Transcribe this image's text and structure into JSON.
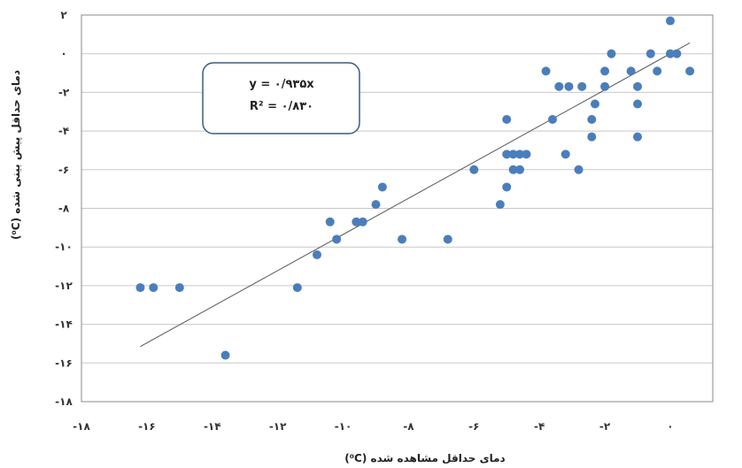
{
  "chart_data": {
    "type": "scatter",
    "xlim": [
      -18,
      1.3
    ],
    "ylim": [
      -18,
      2
    ],
    "x_ticks": [
      -18,
      -16,
      -14,
      -12,
      -10,
      -8,
      -6,
      -4,
      -2,
      0
    ],
    "y_ticks": [
      2,
      0,
      -2,
      -4,
      -6,
      -8,
      -10,
      -12,
      -14,
      -16,
      -18
    ],
    "x_tick_labels": [
      "-۱۸",
      "-۱۶",
      "-۱۴",
      "-۱۲",
      "-۱۰",
      "-۸",
      "-۶",
      "-۴",
      "-۲",
      "۰"
    ],
    "y_tick_labels": [
      "۲",
      "۰",
      "-۲",
      "-۴",
      "-۶",
      "-۸",
      "-۱۰",
      "-۱۲",
      "-۱۴",
      "-۱۶",
      "-۱۸"
    ],
    "xlabel": "دمای حداقل مشاهده شده (⁰C)",
    "ylabel": "دمای حداقل پیش بینی شده (⁰C)",
    "grid": "horizontal",
    "equation": "y = ۰/۹۳۵x",
    "r_squared": "R² = ۰/۸۳۰",
    "trendline": {
      "slope": 0.935,
      "intercept": 0,
      "x_range": [
        -16.2,
        0.6
      ]
    },
    "marker_color": "#4a7ebb",
    "trendline_color": "#555555",
    "points": [
      {
        "x": -16.2,
        "y": -12.1
      },
      {
        "x": -15.8,
        "y": -12.1
      },
      {
        "x": -15.0,
        "y": -12.1
      },
      {
        "x": -13.6,
        "y": -15.6
      },
      {
        "x": -11.4,
        "y": -12.1
      },
      {
        "x": -10.8,
        "y": -10.4
      },
      {
        "x": -10.4,
        "y": -8.7
      },
      {
        "x": -10.2,
        "y": -9.6
      },
      {
        "x": -9.6,
        "y": -8.7
      },
      {
        "x": -9.4,
        "y": -8.7
      },
      {
        "x": -9.0,
        "y": -7.8
      },
      {
        "x": -8.8,
        "y": -6.9
      },
      {
        "x": -8.2,
        "y": -9.6
      },
      {
        "x": -6.8,
        "y": -9.6
      },
      {
        "x": -6.0,
        "y": -6.0
      },
      {
        "x": -5.2,
        "y": -7.8
      },
      {
        "x": -5.0,
        "y": -3.4
      },
      {
        "x": -5.0,
        "y": -5.2
      },
      {
        "x": -5.0,
        "y": -6.9
      },
      {
        "x": -4.8,
        "y": -5.2
      },
      {
        "x": -4.8,
        "y": -6.0
      },
      {
        "x": -4.6,
        "y": -5.2
      },
      {
        "x": -4.6,
        "y": -6.0
      },
      {
        "x": -4.4,
        "y": -5.2
      },
      {
        "x": -3.8,
        "y": -0.9
      },
      {
        "x": -3.6,
        "y": -3.4
      },
      {
        "x": -3.4,
        "y": -1.7
      },
      {
        "x": -3.2,
        "y": -5.2
      },
      {
        "x": -3.1,
        "y": -1.7
      },
      {
        "x": -2.8,
        "y": -6.0
      },
      {
        "x": -2.7,
        "y": -1.7
      },
      {
        "x": -2.4,
        "y": -3.4
      },
      {
        "x": -2.4,
        "y": -4.3
      },
      {
        "x": -2.3,
        "y": -2.6
      },
      {
        "x": -2.0,
        "y": -0.9
      },
      {
        "x": -2.0,
        "y": -1.7
      },
      {
        "x": -1.8,
        "y": 0.0
      },
      {
        "x": -1.2,
        "y": -0.9
      },
      {
        "x": -1.0,
        "y": -1.7
      },
      {
        "x": -1.0,
        "y": -2.6
      },
      {
        "x": -1.0,
        "y": -4.3
      },
      {
        "x": -0.6,
        "y": 0.0
      },
      {
        "x": -0.4,
        "y": -0.9
      },
      {
        "x": 0.0,
        "y": 1.7
      },
      {
        "x": 0.0,
        "y": 0.0
      },
      {
        "x": 0.2,
        "y": 0.0
      },
      {
        "x": 0.6,
        "y": -0.9
      }
    ]
  }
}
